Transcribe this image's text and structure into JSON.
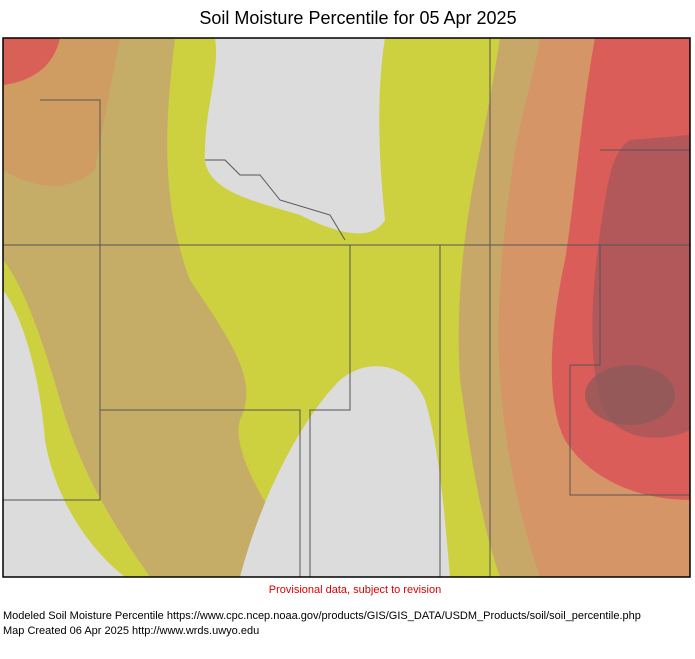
{
  "title": "Soil Moisture Percentile for 05 Apr 2025",
  "notice": "Provisional data, subject to revision",
  "footer": {
    "source": "Modeled Soil Moisture Percentile https://www.cpc.ncep.noaa.gov/products/GIS/GIS_DATA/USDM_Products/soil/soil_percentile.php",
    "created": "Map Created 06 Apr 2025 http://www.wrds.uwyo.edu"
  }
}
